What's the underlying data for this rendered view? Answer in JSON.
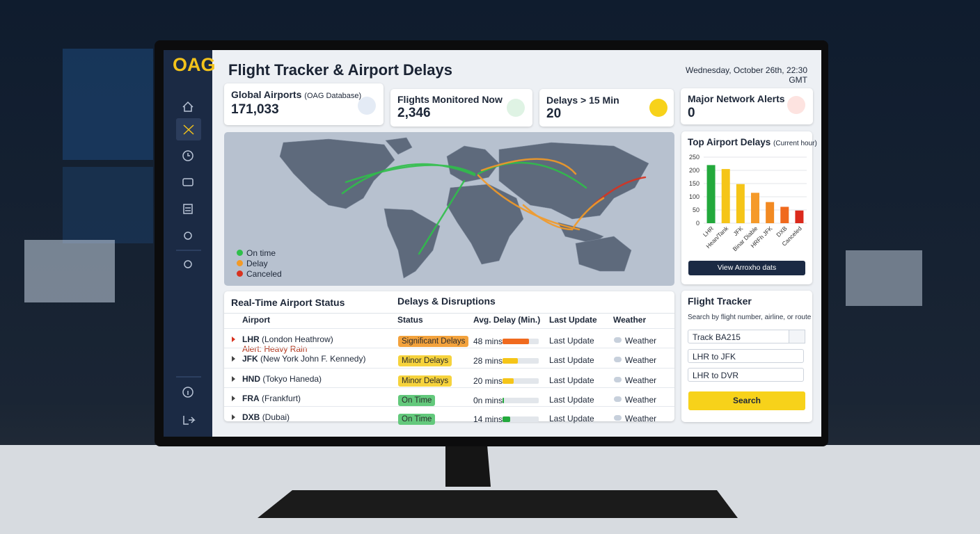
{
  "sidebar": {
    "logo": "OAG"
  },
  "header": {
    "title": "Flight Tracker & Airport Delays",
    "datetime": "Wednesday, October 26th, 22:30 GMT"
  },
  "stats": [
    {
      "label": "Global Airports",
      "note": "(OAG Database)",
      "value": "171,033"
    },
    {
      "label": "Flights Monitored Now",
      "value": "2,346"
    },
    {
      "label": "Delays > 15 Min",
      "value": "20"
    },
    {
      "label": "Major Network Alerts",
      "value": "0"
    }
  ],
  "map": {
    "legend": [
      {
        "label": "On time",
        "color": "#2fbf4a"
      },
      {
        "label": "Delay",
        "color": "#f39a26"
      },
      {
        "label": "Canceled",
        "color": "#d8321f"
      }
    ]
  },
  "chart_data": {
    "type": "bar",
    "title": "Top Airport Delays",
    "subtitle": "(Current hour)",
    "categories": [
      "LHR",
      "Hean/Tank",
      "JFK",
      "Binar Diable",
      "HRFh JFK",
      "DXB",
      "Canceled"
    ],
    "values": [
      220,
      205,
      148,
      115,
      80,
      62,
      48
    ],
    "colors": [
      "#23a93c",
      "#f5c518",
      "#f5c518",
      "#f59a2a",
      "#f28a22",
      "#f06a1e",
      "#db2a1c"
    ],
    "ylim": [
      0,
      250
    ],
    "yticks": [
      0,
      50,
      100,
      150,
      200,
      250
    ],
    "grid": true
  },
  "chart_card": {
    "button": "View Arroxho dats"
  },
  "table": {
    "title": "Real-Time Airport Status",
    "subtitle": "Delays & Disruptions",
    "columns": [
      "Airport",
      "Status",
      "Avg. Delay (Min.)",
      "Last Update",
      "Weather"
    ],
    "rows": [
      {
        "code": "LHR",
        "name": "(London Heathrow)",
        "alert": "Alert: Heavy Rain",
        "status": "Significant Delays",
        "status_color": "#f3a23c",
        "delay": 48,
        "delay_label": "48 mins",
        "delay_color": "#f06a1e",
        "update": "Last Update",
        "weather": "Weather"
      },
      {
        "code": "JFK",
        "name": "(New York John F. Kennedy)",
        "status": "Minor Delays",
        "status_color": "#f6d33d",
        "delay": 28,
        "delay_label": "28 mins",
        "delay_color": "#f5c518",
        "update": "Last Update",
        "weather": "Weather"
      },
      {
        "code": "HND",
        "name": "(Tokyo Haneda)",
        "status": "Minor Delays",
        "status_color": "#f6d33d",
        "delay": 20,
        "delay_label": "20 mins",
        "delay_color": "#f5c518",
        "update": "Last Update",
        "weather": "Weather"
      },
      {
        "code": "FRA",
        "name": "(Frankfurt)",
        "status": "On Time",
        "status_color": "#63c97c",
        "delay": 0,
        "delay_label": "0n mins",
        "delay_color": "#23a93c",
        "update": "Last Update",
        "weather": "Weather"
      },
      {
        "code": "DXB",
        "name": "(Dubai)",
        "status": "On Time",
        "status_color": "#63c97c",
        "delay": 14,
        "delay_label": "14 mins",
        "delay_color": "#23a93c",
        "update": "Last Update",
        "weather": "Weather"
      }
    ]
  },
  "tracker": {
    "title": "Flight Tracker",
    "hint": "Search by flight number, airline, or route",
    "inputs": [
      "Track BA215",
      "LHR to JFK",
      "LHR to DVR"
    ],
    "button": "Search"
  }
}
